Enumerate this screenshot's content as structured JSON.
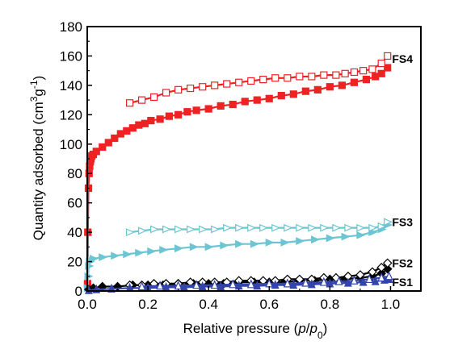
{
  "chart_data": {
    "type": "scatter",
    "xlabel_parts": [
      "Relative pressure (",
      "p",
      "/",
      "p",
      "0",
      ")"
    ],
    "ylabel_parts": [
      "Quantity adsorbed (cm",
      "3",
      "g",
      "-1",
      ")"
    ],
    "xlim": [
      0.0,
      1.1
    ],
    "ylim": [
      0,
      180
    ],
    "xticks": [
      "0.0",
      "0.2",
      "0.4",
      "0.6",
      "0.8",
      "1.0"
    ],
    "yticks": [
      "0",
      "20",
      "40",
      "60",
      "80",
      "100",
      "120",
      "140",
      "160",
      "180"
    ],
    "grid": false,
    "series": [
      {
        "name": "FS4",
        "color": "#ee2222",
        "adsorption_marker": "filled-square",
        "desorption_marker": "open-square",
        "adsorption": [
          [
            0.001,
            5
          ],
          [
            0.002,
            40
          ],
          [
            0.004,
            70
          ],
          [
            0.006,
            80
          ],
          [
            0.008,
            85
          ],
          [
            0.01,
            88
          ],
          [
            0.012,
            90
          ],
          [
            0.015,
            92
          ],
          [
            0.02,
            93
          ],
          [
            0.03,
            95
          ],
          [
            0.05,
            98
          ],
          [
            0.07,
            101
          ],
          [
            0.09,
            104
          ],
          [
            0.11,
            107
          ],
          [
            0.13,
            109
          ],
          [
            0.15,
            111
          ],
          [
            0.17,
            113
          ],
          [
            0.19,
            114
          ],
          [
            0.21,
            116
          ],
          [
            0.24,
            117
          ],
          [
            0.27,
            119
          ],
          [
            0.3,
            120
          ],
          [
            0.33,
            122
          ],
          [
            0.36,
            123
          ],
          [
            0.4,
            124
          ],
          [
            0.44,
            126
          ],
          [
            0.48,
            127
          ],
          [
            0.52,
            129
          ],
          [
            0.56,
            130
          ],
          [
            0.6,
            131
          ],
          [
            0.64,
            133
          ],
          [
            0.68,
            134
          ],
          [
            0.72,
            136
          ],
          [
            0.76,
            137
          ],
          [
            0.8,
            139
          ],
          [
            0.84,
            140
          ],
          [
            0.88,
            142
          ],
          [
            0.92,
            144
          ],
          [
            0.95,
            146
          ],
          [
            0.97,
            148
          ],
          [
            0.99,
            152
          ]
        ],
        "desorption": [
          [
            0.99,
            160
          ],
          [
            0.97,
            155
          ],
          [
            0.94,
            151
          ],
          [
            0.91,
            150
          ],
          [
            0.88,
            149
          ],
          [
            0.85,
            148
          ],
          [
            0.82,
            147
          ],
          [
            0.78,
            147
          ],
          [
            0.74,
            146
          ],
          [
            0.7,
            146
          ],
          [
            0.66,
            145
          ],
          [
            0.62,
            145
          ],
          [
            0.58,
            144
          ],
          [
            0.54,
            143
          ],
          [
            0.5,
            142
          ],
          [
            0.46,
            141
          ],
          [
            0.42,
            140
          ],
          [
            0.38,
            139
          ],
          [
            0.34,
            138
          ],
          [
            0.3,
            137
          ],
          [
            0.26,
            135
          ],
          [
            0.22,
            132
          ],
          [
            0.18,
            130
          ],
          [
            0.14,
            128
          ]
        ]
      },
      {
        "name": "FS3",
        "color": "#6cc5d2",
        "adsorption_marker": "filled-triangle-right",
        "desorption_marker": "open-triangle-right",
        "adsorption": [
          [
            0.001,
            2
          ],
          [
            0.003,
            10
          ],
          [
            0.005,
            17
          ],
          [
            0.008,
            20
          ],
          [
            0.01,
            21
          ],
          [
            0.02,
            22
          ],
          [
            0.05,
            23
          ],
          [
            0.09,
            24
          ],
          [
            0.13,
            25
          ],
          [
            0.17,
            26
          ],
          [
            0.21,
            27
          ],
          [
            0.25,
            28
          ],
          [
            0.3,
            29
          ],
          [
            0.35,
            30
          ],
          [
            0.4,
            30
          ],
          [
            0.45,
            31
          ],
          [
            0.5,
            32
          ],
          [
            0.55,
            32
          ],
          [
            0.6,
            33
          ],
          [
            0.65,
            33
          ],
          [
            0.7,
            34
          ],
          [
            0.75,
            35
          ],
          [
            0.8,
            36
          ],
          [
            0.85,
            37
          ],
          [
            0.9,
            38
          ],
          [
            0.94,
            40
          ],
          [
            0.97,
            42
          ],
          [
            0.99,
            45
          ]
        ],
        "desorption": [
          [
            0.99,
            47
          ],
          [
            0.97,
            44
          ],
          [
            0.94,
            43
          ],
          [
            0.9,
            43
          ],
          [
            0.86,
            43
          ],
          [
            0.82,
            43
          ],
          [
            0.78,
            43
          ],
          [
            0.74,
            43
          ],
          [
            0.7,
            43
          ],
          [
            0.66,
            43
          ],
          [
            0.62,
            43
          ],
          [
            0.58,
            43
          ],
          [
            0.54,
            43
          ],
          [
            0.5,
            43
          ],
          [
            0.46,
            43
          ],
          [
            0.42,
            42
          ],
          [
            0.38,
            42
          ],
          [
            0.34,
            42
          ],
          [
            0.3,
            42
          ],
          [
            0.26,
            42
          ],
          [
            0.22,
            42
          ],
          [
            0.18,
            41
          ],
          [
            0.14,
            40
          ]
        ]
      },
      {
        "name": "FS2",
        "color": "#000000",
        "adsorption_marker": "filled-diamond",
        "desorption_marker": "open-diamond",
        "adsorption": [
          [
            0.005,
            1
          ],
          [
            0.02,
            2
          ],
          [
            0.05,
            3
          ],
          [
            0.1,
            3
          ],
          [
            0.15,
            4
          ],
          [
            0.2,
            4
          ],
          [
            0.25,
            4
          ],
          [
            0.3,
            5
          ],
          [
            0.35,
            5
          ],
          [
            0.4,
            5
          ],
          [
            0.45,
            5
          ],
          [
            0.5,
            6
          ],
          [
            0.55,
            6
          ],
          [
            0.6,
            6
          ],
          [
            0.65,
            6
          ],
          [
            0.7,
            7
          ],
          [
            0.75,
            7
          ],
          [
            0.8,
            8
          ],
          [
            0.85,
            8
          ],
          [
            0.9,
            9
          ],
          [
            0.94,
            10
          ],
          [
            0.97,
            12
          ],
          [
            0.99,
            15
          ]
        ],
        "desorption": [
          [
            0.99,
            19
          ],
          [
            0.97,
            16
          ],
          [
            0.94,
            13
          ],
          [
            0.9,
            11
          ],
          [
            0.86,
            10
          ],
          [
            0.82,
            9
          ],
          [
            0.78,
            9
          ],
          [
            0.74,
            8
          ],
          [
            0.7,
            8
          ],
          [
            0.66,
            8
          ],
          [
            0.62,
            7
          ],
          [
            0.58,
            7
          ],
          [
            0.54,
            7
          ],
          [
            0.5,
            7
          ],
          [
            0.46,
            6
          ],
          [
            0.42,
            6
          ],
          [
            0.38,
            6
          ],
          [
            0.34,
            6
          ],
          [
            0.3,
            5
          ],
          [
            0.26,
            5
          ],
          [
            0.22,
            5
          ],
          [
            0.18,
            4
          ],
          [
            0.14,
            4
          ]
        ]
      },
      {
        "name": "FS1",
        "color": "#3344aa",
        "adsorption_marker": "filled-triangle-up",
        "desorption_marker": "open-triangle-up",
        "adsorption": [
          [
            0.005,
            0.5
          ],
          [
            0.03,
            1
          ],
          [
            0.08,
            1.5
          ],
          [
            0.14,
            2
          ],
          [
            0.2,
            2
          ],
          [
            0.26,
            2.5
          ],
          [
            0.32,
            2.5
          ],
          [
            0.38,
            3
          ],
          [
            0.44,
            3
          ],
          [
            0.5,
            3.5
          ],
          [
            0.56,
            3.5
          ],
          [
            0.62,
            4
          ],
          [
            0.68,
            4
          ],
          [
            0.74,
            4.5
          ],
          [
            0.8,
            5
          ],
          [
            0.86,
            5.5
          ],
          [
            0.91,
            6
          ],
          [
            0.95,
            6.5
          ],
          [
            0.98,
            7.5
          ],
          [
            0.995,
            8
          ]
        ],
        "desorption": [
          [
            0.995,
            10
          ],
          [
            0.97,
            9
          ],
          [
            0.93,
            8
          ],
          [
            0.88,
            7
          ],
          [
            0.83,
            6.5
          ],
          [
            0.78,
            6
          ],
          [
            0.72,
            5.5
          ],
          [
            0.66,
            5
          ],
          [
            0.6,
            5
          ],
          [
            0.54,
            4.5
          ],
          [
            0.48,
            4.5
          ],
          [
            0.42,
            4
          ],
          [
            0.36,
            4
          ],
          [
            0.3,
            3.5
          ],
          [
            0.24,
            3.5
          ],
          [
            0.18,
            3
          ]
        ]
      }
    ],
    "labels": [
      {
        "text": "FS4",
        "x": 1.005,
        "y": 158
      },
      {
        "text": "FS3",
        "x": 1.005,
        "y": 47
      },
      {
        "text": "FS2",
        "x": 1.005,
        "y": 19
      },
      {
        "text": "FS1",
        "x": 1.005,
        "y": 6
      }
    ]
  }
}
